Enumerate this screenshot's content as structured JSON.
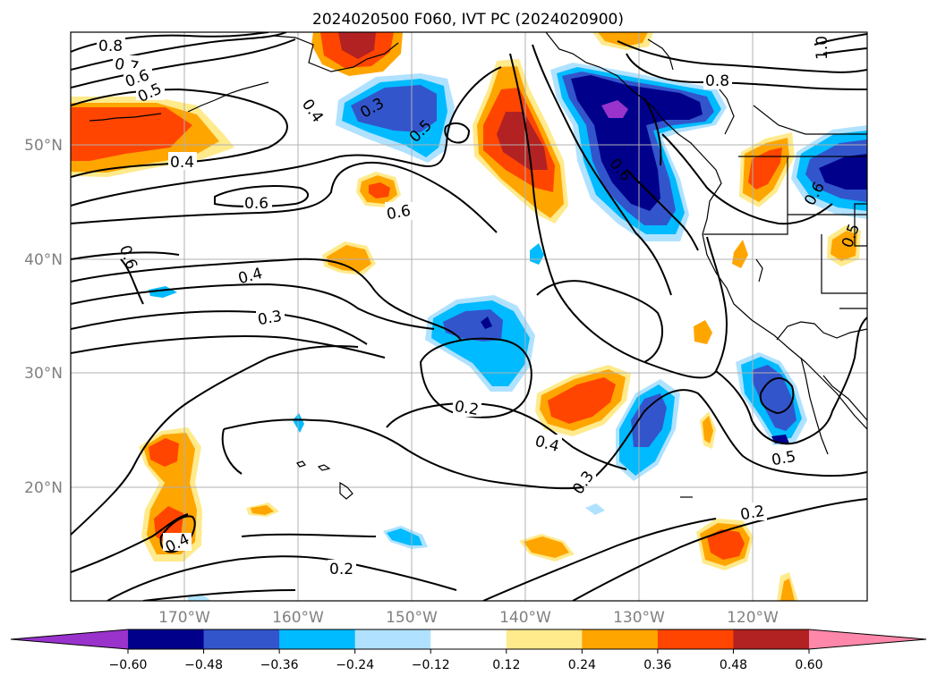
{
  "title": "2024020500 F060, IVT PC (2024020900)",
  "lat_labels": [
    "50°N",
    "40°N",
    "30°N",
    "20°N"
  ],
  "lon_labels": [
    "170°W",
    "160°W",
    "150°W",
    "140°W",
    "130°W",
    "120°W"
  ],
  "colorbar": {
    "ticks": [
      "−0.60",
      "−0.48",
      "−0.36",
      "−0.24",
      "−0.12",
      "0.12",
      "0.24",
      "0.36",
      "0.48",
      "0.60"
    ],
    "colors": [
      "#9933cc",
      "#00008b",
      "#3355cc",
      "#00bbff",
      "#b0e2ff",
      "#ffffff",
      "#ffea8c",
      "#ffa500",
      "#ff4500",
      "#b22222",
      "#ff88aa"
    ]
  },
  "contour_labels": [
    "0.8",
    "0.7",
    "0.6",
    "0.5",
    "0.4",
    "0.3",
    "0.5",
    "0.4",
    "0.6",
    "0.6",
    "0.6",
    "0.4",
    "0.3",
    "0.2",
    "0.4",
    "0.3",
    "0.2",
    "0.5",
    "0.2",
    "0.4",
    "0.6",
    "0.8",
    "1.0",
    "0.6",
    "0.5"
  ],
  "fill_colors": {
    "purple": "#9933cc",
    "navy": "#00008b",
    "royal": "#3355cc",
    "cyan": "#00bbff",
    "pale": "#b0e2ff",
    "yellow": "#ffea8c",
    "orange": "#ffa500",
    "redorange": "#ff4500",
    "darkred": "#b22222"
  }
}
